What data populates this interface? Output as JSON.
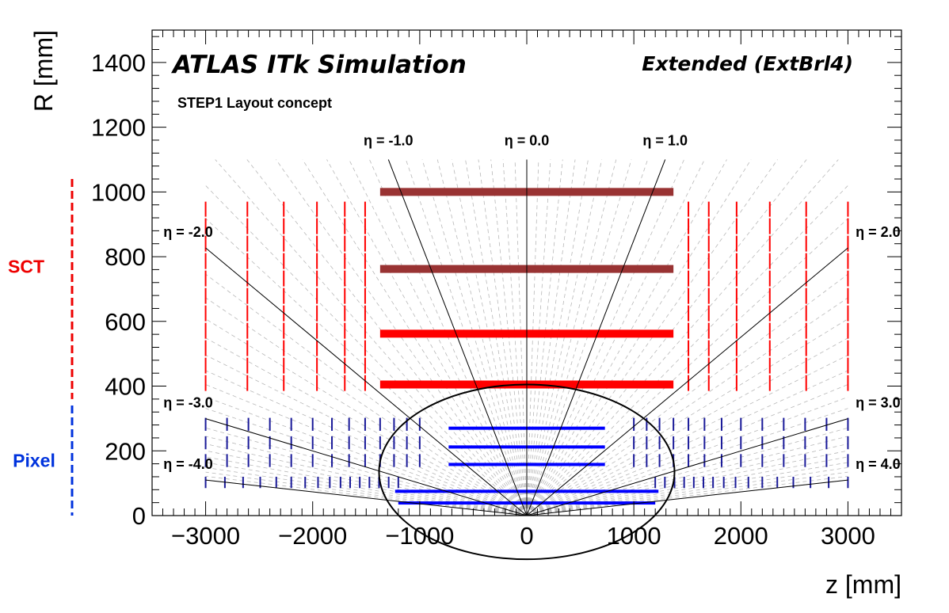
{
  "chart_data": {
    "type": "scatter",
    "title": "ATLAS ITk Simulation",
    "variant_label": "Extended (ExtBrl4)",
    "subtitle": "STEP1 Layout concept",
    "xlabel": "z [mm]",
    "ylabel": "R [mm]",
    "xlim": [
      -3500,
      3500
    ],
    "ylim": [
      0,
      1500
    ],
    "xticks": [
      -3000,
      -2000,
      -1000,
      0,
      1000,
      2000,
      3000
    ],
    "xtick_labels": [
      "−3000",
      "−2000",
      "−1000",
      "0",
      "1000",
      "2000",
      "3000"
    ],
    "yticks": [
      0,
      200,
      400,
      600,
      800,
      1000,
      1200,
      1400
    ],
    "ytick_labels": [
      "0",
      "200",
      "400",
      "600",
      "800",
      "1000",
      "1200",
      "1400"
    ],
    "colors": {
      "sct_outer": "#993333",
      "sct_inner": "#ff0000",
      "pixel_barrel": "#0000ff",
      "pixel_endcap": "#1a1a99",
      "pixel_label": "#0033dd",
      "sct_label": "#ee0000"
    },
    "eta_lines": [
      {
        "eta": -4.0,
        "label": "η = -4.0"
      },
      {
        "eta": -3.0,
        "label": "η = -3.0"
      },
      {
        "eta": -2.0,
        "label": "η = -2.0"
      },
      {
        "eta": -1.0,
        "label": "η = -1.0"
      },
      {
        "eta": 0.0,
        "label": "η = 0.0"
      },
      {
        "eta": 1.0,
        "label": "η = 1.0"
      },
      {
        "eta": 2.0,
        "label": "η = 2.0"
      },
      {
        "eta": 3.0,
        "label": "η = 3.0"
      },
      {
        "eta": 4.0,
        "label": "η = 4.0"
      }
    ],
    "eta_grid_step": 0.1,
    "eta_grid_max": 4.0,
    "sct_barrel_layers": [
      {
        "r": 405,
        "z_half": 1370,
        "color_key": "sct_inner"
      },
      {
        "r": 562,
        "z_half": 1370,
        "color_key": "sct_inner"
      },
      {
        "r": 762,
        "z_half": 1370,
        "color_key": "sct_outer"
      },
      {
        "r": 1000,
        "z_half": 1370,
        "color_key": "sct_outer"
      }
    ],
    "sct_endcap_disks": {
      "z": [
        1510,
        1700,
        1960,
        2270,
        2610,
        3000
      ],
      "r_min": 385,
      "r_max": 970
    },
    "pixel_barrel_layers": [
      {
        "r": 39,
        "z_half": 1200
      },
      {
        "r": 75,
        "z_half": 1230
      },
      {
        "r": 158,
        "z_half": 730
      },
      {
        "r": 212,
        "z_half": 730
      },
      {
        "r": 270,
        "z_half": 730
      }
    ],
    "pixel_endcap_rings": [
      {
        "r_min": 85,
        "r_max": 120,
        "z": [
          -3000,
          -2820,
          -2650,
          -2490,
          -2340,
          -2200,
          -2070,
          -1950,
          -1840,
          -1740,
          -1650,
          -1560,
          -1470,
          -1380,
          -1290,
          -1200,
          1200,
          1290,
          1380,
          1470,
          1560,
          1650,
          1740,
          1840,
          1950,
          2070,
          2200,
          2340,
          2490,
          2650,
          2820,
          3000
        ]
      },
      {
        "r_min": 150,
        "r_max": 190,
        "z": [
          -3000,
          -2800,
          -2600,
          -2400,
          -2200,
          -2000,
          -1820,
          -1660,
          -1510,
          -1370,
          -1240,
          -1120,
          -1000,
          1000,
          1120,
          1240,
          1370,
          1510,
          1660,
          1820,
          2000,
          2200,
          2400,
          2600,
          2800,
          3000
        ]
      },
      {
        "r_min": 205,
        "r_max": 245,
        "z": [
          -3000,
          -2800,
          -2600,
          -2400,
          -2200,
          -2000,
          -1820,
          -1660,
          -1510,
          -1370,
          -1240,
          -1120,
          -1000,
          1000,
          1120,
          1240,
          1370,
          1510,
          1660,
          1820,
          2000,
          2200,
          2400,
          2600,
          2800,
          3000
        ]
      },
      {
        "r_min": 262,
        "r_max": 302,
        "z": [
          -3000,
          -2800,
          -2600,
          -2400,
          -2200,
          -2000,
          -1820,
          -1660,
          -1510,
          -1370,
          -1240,
          -1120,
          -1000,
          1000,
          1120,
          1240,
          1370,
          1510,
          1660,
          1820,
          2000,
          2200,
          2400,
          2600,
          2800,
          3000
        ]
      }
    ],
    "highlight_ellipse": {
      "z_center": 0,
      "r_center": 135,
      "z_radius": 1380,
      "r_radius": 270
    },
    "side_labels": {
      "sct": {
        "text": "SCT",
        "r_min": 360,
        "r_max": 1040
      },
      "pixel": {
        "text": "Pixel",
        "r_min": 0,
        "r_max": 340
      }
    }
  }
}
